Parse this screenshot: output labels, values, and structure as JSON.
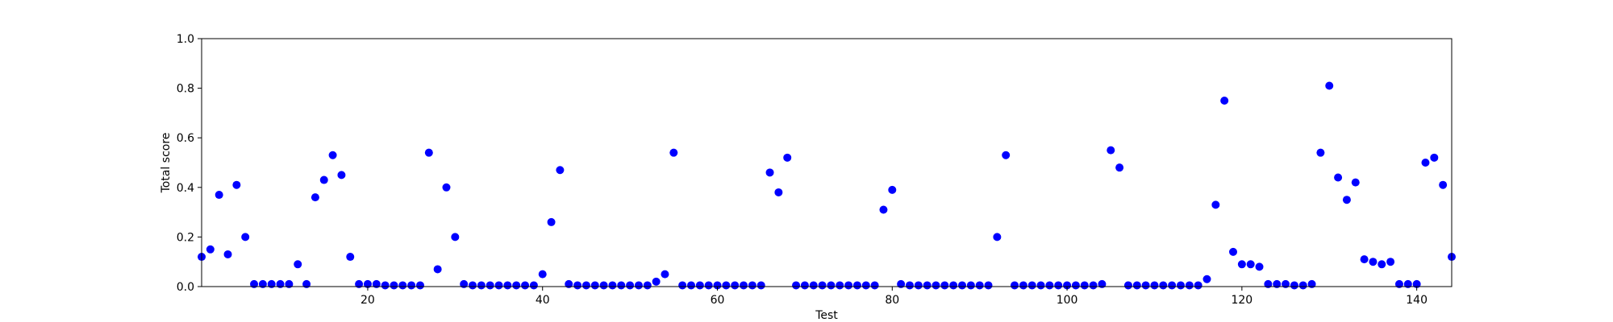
{
  "chart_data": {
    "type": "scatter",
    "xlabel": "Test",
    "ylabel": "Total score",
    "xlim": [
      1,
      144
    ],
    "ylim": [
      0,
      1.0
    ],
    "x_ticks": [
      20,
      40,
      60,
      80,
      100,
      120,
      140
    ],
    "y_ticks": [
      0.0,
      0.2,
      0.4,
      0.6,
      0.8,
      1.0
    ],
    "y_tick_labels": [
      "0.0",
      "0.2",
      "0.4",
      "0.6",
      "0.8",
      "1.0"
    ],
    "grid": false,
    "marker_color": "#0000ff",
    "x": [
      1,
      2,
      3,
      4,
      5,
      6,
      7,
      8,
      9,
      10,
      11,
      12,
      13,
      14,
      15,
      16,
      17,
      18,
      19,
      20,
      21,
      22,
      23,
      24,
      25,
      26,
      27,
      28,
      29,
      30,
      31,
      32,
      33,
      34,
      35,
      36,
      37,
      38,
      39,
      40,
      41,
      42,
      43,
      44,
      45,
      46,
      47,
      48,
      49,
      50,
      51,
      52,
      53,
      54,
      55,
      56,
      57,
      58,
      59,
      60,
      61,
      62,
      63,
      64,
      65,
      66,
      67,
      68,
      69,
      70,
      71,
      72,
      73,
      74,
      75,
      76,
      77,
      78,
      79,
      80,
      81,
      82,
      83,
      84,
      85,
      86,
      87,
      88,
      89,
      90,
      91,
      92,
      93,
      94,
      95,
      96,
      97,
      98,
      99,
      100,
      101,
      102,
      103,
      104,
      105,
      106,
      107,
      108,
      109,
      110,
      111,
      112,
      113,
      114,
      115,
      116,
      117,
      118,
      119,
      120,
      121,
      122,
      123,
      124,
      125,
      126,
      127,
      128,
      129,
      130,
      131,
      132,
      133,
      134,
      135,
      136,
      137,
      138,
      139,
      140,
      141,
      142,
      143,
      144
    ],
    "y": [
      0.12,
      0.15,
      0.37,
      0.13,
      0.41,
      0.2,
      0.01,
      0.01,
      0.01,
      0.01,
      0.01,
      0.09,
      0.01,
      0.36,
      0.43,
      0.53,
      0.45,
      0.12,
      0.01,
      0.01,
      0.01,
      0.005,
      0.005,
      0.005,
      0.005,
      0.005,
      0.54,
      0.07,
      0.4,
      0.2,
      0.01,
      0.005,
      0.005,
      0.005,
      0.005,
      0.005,
      0.005,
      0.005,
      0.005,
      0.05,
      0.26,
      0.47,
      0.01,
      0.005,
      0.005,
      0.005,
      0.005,
      0.005,
      0.005,
      0.005,
      0.005,
      0.005,
      0.02,
      0.05,
      0.54,
      0.005,
      0.005,
      0.005,
      0.005,
      0.005,
      0.005,
      0.005,
      0.005,
      0.005,
      0.005,
      0.46,
      0.38,
      0.52,
      0.005,
      0.005,
      0.005,
      0.005,
      0.005,
      0.005,
      0.005,
      0.005,
      0.005,
      0.005,
      0.31,
      0.39,
      0.01,
      0.005,
      0.005,
      0.005,
      0.005,
      0.005,
      0.005,
      0.005,
      0.005,
      0.005,
      0.005,
      0.2,
      0.53,
      0.005,
      0.005,
      0.005,
      0.005,
      0.005,
      0.005,
      0.005,
      0.005,
      0.005,
      0.005,
      0.01,
      0.55,
      0.48,
      0.005,
      0.005,
      0.005,
      0.005,
      0.005,
      0.005,
      0.005,
      0.005,
      0.005,
      0.03,
      0.33,
      0.75,
      0.14,
      0.09,
      0.09,
      0.08,
      0.01,
      0.01,
      0.01,
      0.005,
      0.005,
      0.01,
      0.54,
      0.81,
      0.44,
      0.35,
      0.42,
      0.11,
      0.1,
      0.09,
      0.1,
      0.01,
      0.01,
      0.01,
      0.5,
      0.52,
      0.41,
      0.12
    ]
  }
}
